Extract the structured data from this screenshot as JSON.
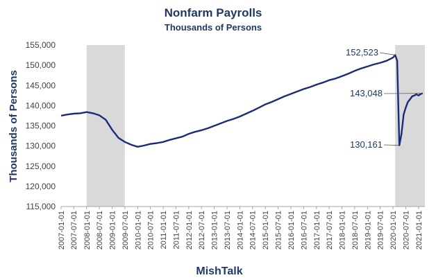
{
  "chart_data": {
    "type": "line",
    "title": "Nonfarm Payrolls",
    "subtitle": "Thousands of Persons",
    "ylabel": "Thousands of Persons",
    "footer": "MishTalk",
    "ylim": [
      115000,
      155000
    ],
    "yticks": [
      115000,
      120000,
      125000,
      130000,
      135000,
      140000,
      145000,
      150000,
      155000
    ],
    "ytick_labels": [
      "115,000",
      "120,000",
      "125,000",
      "130,000",
      "135,000",
      "140,000",
      "145,000",
      "150,000",
      "155,000"
    ],
    "xticks": [
      "2007-01-01",
      "2007-07-01",
      "2008-01-01",
      "2008-07-01",
      "2009-01-01",
      "2009-07-01",
      "2010-01-01",
      "2010-07-01",
      "2011-01-01",
      "2011-07-01",
      "2012-01-01",
      "2012-07-01",
      "2013-01-01",
      "2013-07-01",
      "2014-01-01",
      "2014-07-01",
      "2015-01-01",
      "2015-07-01",
      "2016-01-01",
      "2016-07-01",
      "2017-01-01",
      "2017-07-01",
      "2018-01-01",
      "2018-07-01",
      "2019-01-01",
      "2019-07-01",
      "2020-01-01",
      "2020-07-01",
      "2021-01-01"
    ],
    "recessions": [
      [
        "2008-01-01",
        "2009-07-01"
      ],
      [
        "2020-02-01",
        "2021-04-01"
      ]
    ],
    "grid": false,
    "series": [
      {
        "color": "#1a2b7a",
        "points": [
          [
            "2007-01-01",
            137500
          ],
          [
            "2007-04-01",
            137800
          ],
          [
            "2007-07-01",
            138000
          ],
          [
            "2007-10-01",
            138100
          ],
          [
            "2008-01-01",
            138400
          ],
          [
            "2008-04-01",
            138100
          ],
          [
            "2008-07-01",
            137600
          ],
          [
            "2008-10-01",
            136500
          ],
          [
            "2009-01-01",
            134000
          ],
          [
            "2009-04-01",
            132000
          ],
          [
            "2009-07-01",
            131000
          ],
          [
            "2009-10-01",
            130300
          ],
          [
            "2010-01-01",
            129800
          ],
          [
            "2010-04-01",
            130100
          ],
          [
            "2010-07-01",
            130500
          ],
          [
            "2010-10-01",
            130700
          ],
          [
            "2011-01-01",
            131000
          ],
          [
            "2011-04-01",
            131500
          ],
          [
            "2011-07-01",
            131900
          ],
          [
            "2011-10-01",
            132300
          ],
          [
            "2012-01-01",
            133000
          ],
          [
            "2012-04-01",
            133500
          ],
          [
            "2012-07-01",
            133900
          ],
          [
            "2012-10-01",
            134400
          ],
          [
            "2013-01-01",
            135000
          ],
          [
            "2013-04-01",
            135600
          ],
          [
            "2013-07-01",
            136200
          ],
          [
            "2013-10-01",
            136700
          ],
          [
            "2014-01-01",
            137300
          ],
          [
            "2014-04-01",
            138000
          ],
          [
            "2014-07-01",
            138700
          ],
          [
            "2014-10-01",
            139500
          ],
          [
            "2015-01-01",
            140300
          ],
          [
            "2015-04-01",
            140900
          ],
          [
            "2015-07-01",
            141600
          ],
          [
            "2015-10-01",
            142300
          ],
          [
            "2016-01-01",
            142900
          ],
          [
            "2016-04-01",
            143500
          ],
          [
            "2016-07-01",
            144100
          ],
          [
            "2016-10-01",
            144600
          ],
          [
            "2017-01-01",
            145200
          ],
          [
            "2017-04-01",
            145700
          ],
          [
            "2017-07-01",
            146300
          ],
          [
            "2017-10-01",
            146700
          ],
          [
            "2018-01-01",
            147300
          ],
          [
            "2018-04-01",
            147900
          ],
          [
            "2018-07-01",
            148600
          ],
          [
            "2018-10-01",
            149200
          ],
          [
            "2019-01-01",
            149700
          ],
          [
            "2019-04-01",
            150200
          ],
          [
            "2019-07-01",
            150600
          ],
          [
            "2019-10-01",
            151100
          ],
          [
            "2020-01-01",
            151900
          ],
          [
            "2020-02-01",
            152523
          ],
          [
            "2020-03-01",
            151100
          ],
          [
            "2020-04-01",
            130161
          ],
          [
            "2020-05-01",
            133000
          ],
          [
            "2020-06-01",
            137800
          ],
          [
            "2020-07-01",
            139500
          ],
          [
            "2020-08-01",
            140900
          ],
          [
            "2020-09-01",
            141600
          ],
          [
            "2020-10-01",
            142300
          ],
          [
            "2020-11-01",
            142500
          ],
          [
            "2020-12-01",
            142800
          ],
          [
            "2021-01-01",
            142500
          ],
          [
            "2021-02-01",
            142900
          ],
          [
            "2021-03-01",
            143048
          ]
        ]
      }
    ],
    "annotations": [
      {
        "text": "152,523",
        "date": "2020-02-01",
        "value": 152523
      },
      {
        "text": "143,048",
        "date": "2021-03-01",
        "value": 143048
      },
      {
        "text": "130,161",
        "date": "2020-04-01",
        "value": 130161
      }
    ]
  }
}
